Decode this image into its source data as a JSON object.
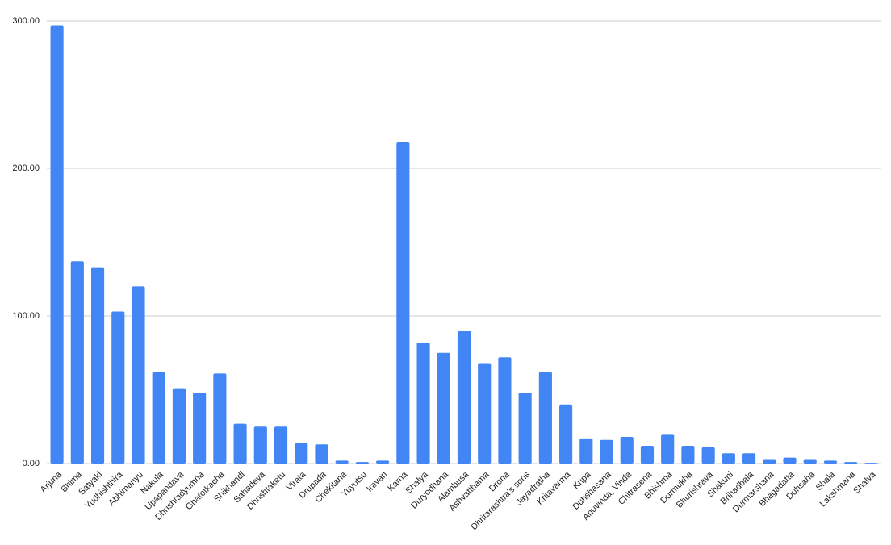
{
  "chart_data": {
    "type": "bar",
    "categories": [
      "Arjuna",
      "Bhima",
      "Satyaki",
      "Yudhishthira",
      "Abhimanyu",
      "Nakula",
      "Upapandava",
      "Dhrishtadyumna",
      "Ghatotkacha",
      "Shikhandi",
      "Sahadeva",
      "Dhrishtaketu",
      "Virata",
      "Drupada",
      "Chekitana",
      "Yuyutsu",
      "Iravan",
      "Karna",
      "Shalya",
      "Duryodhana",
      "Alambusa",
      "Ashvatthama",
      "Drona",
      "Dhritarashtra's sons",
      "Jayadratha",
      "Kritavarma",
      "Kripa",
      "Duhshasana",
      "Anuvinda, Vinda",
      "Chitrasena",
      "Bhishma",
      "Durmukha",
      "Bhurishrava",
      "Shakuni",
      "Brihadbala",
      "Durmarshana",
      "Bhagadatta",
      "Duhsaha",
      "Shala",
      "Lakshmana",
      "Shalva"
    ],
    "values": [
      297,
      137,
      133,
      103,
      120,
      62,
      51,
      48,
      61,
      27,
      25,
      25,
      14,
      13,
      2,
      1,
      2,
      218,
      82,
      75,
      90,
      68,
      72,
      48,
      62,
      40,
      17,
      16,
      18,
      12,
      20,
      12,
      11,
      7,
      7,
      3,
      4,
      3,
      2,
      1,
      0.5
    ],
    "color": "#4285f4",
    "ylim": [
      0,
      300
    ],
    "yticks": [
      {
        "value": 0,
        "label": "0.00"
      },
      {
        "value": 100,
        "label": "100.00"
      },
      {
        "value": 200,
        "label": "200.00"
      },
      {
        "value": 300,
        "label": "300.00"
      }
    ],
    "grid": true
  }
}
